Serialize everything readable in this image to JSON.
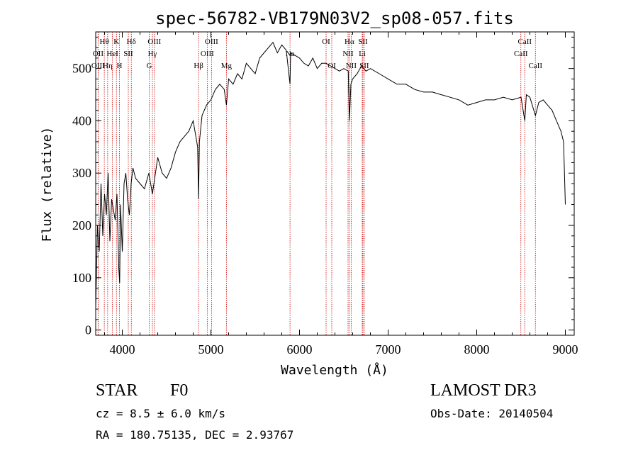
{
  "chart_data": {
    "type": "line",
    "title": "spec-56782-VB179N03V2_sp08-057.fits",
    "xlabel": "Wavelength (Å)",
    "ylabel": "Flux (relative)",
    "xlim": [
      3700,
      9100
    ],
    "ylim": [
      -10,
      570
    ],
    "xticks": [
      4000,
      5000,
      6000,
      7000,
      8000,
      9000
    ],
    "yticks": [
      0,
      100,
      200,
      300,
      400,
      500
    ],
    "xtick_labels": [
      "4000",
      "5000",
      "6000",
      "7000",
      "8000",
      "9000"
    ],
    "ytick_labels": [
      "0",
      "100",
      "200",
      "300",
      "400",
      "500"
    ],
    "grid": false,
    "series": [
      {
        "name": "flux",
        "x": [
          3700,
          3720,
          3740,
          3760,
          3780,
          3800,
          3820,
          3840,
          3860,
          3880,
          3900,
          3920,
          3940,
          3960,
          3970,
          3980,
          4000,
          4020,
          4040,
          4060,
          4080,
          4100,
          4120,
          4150,
          4200,
          4250,
          4300,
          4340,
          4400,
          4450,
          4500,
          4550,
          4600,
          4650,
          4700,
          4750,
          4800,
          4850,
          4861,
          4870,
          4900,
          4950,
          5000,
          5050,
          5100,
          5150,
          5175,
          5200,
          5250,
          5300,
          5350,
          5400,
          5450,
          5500,
          5550,
          5600,
          5650,
          5700,
          5750,
          5800,
          5850,
          5893,
          5900,
          5950,
          6000,
          6050,
          6100,
          6150,
          6200,
          6250,
          6300,
          6350,
          6400,
          6450,
          6500,
          6550,
          6563,
          6580,
          6600,
          6650,
          6700,
          6750,
          6800,
          6900,
          7000,
          7100,
          7200,
          7300,
          7400,
          7500,
          7600,
          7700,
          7800,
          7900,
          8000,
          8100,
          8200,
          8300,
          8400,
          8500,
          8542,
          8560,
          8600,
          8662,
          8700,
          8750,
          8800,
          8850,
          8900,
          8950,
          8980,
          9000
        ],
        "values": [
          40,
          200,
          150,
          280,
          180,
          260,
          220,
          300,
          170,
          250,
          230,
          210,
          260,
          120,
          90,
          240,
          150,
          280,
          300,
          250,
          220,
          280,
          310,
          290,
          280,
          270,
          300,
          260,
          330,
          300,
          290,
          310,
          340,
          360,
          370,
          380,
          400,
          350,
          250,
          360,
          410,
          430,
          440,
          460,
          470,
          460,
          430,
          480,
          470,
          490,
          480,
          510,
          500,
          490,
          520,
          530,
          540,
          550,
          530,
          545,
          535,
          470,
          530,
          525,
          520,
          510,
          505,
          520,
          500,
          510,
          510,
          505,
          500,
          495,
          500,
          495,
          400,
          470,
          480,
          490,
          505,
          495,
          500,
          490,
          480,
          470,
          470,
          460,
          455,
          455,
          450,
          445,
          440,
          430,
          435,
          440,
          440,
          445,
          440,
          445,
          400,
          450,
          445,
          410,
          435,
          440,
          430,
          420,
          400,
          380,
          360,
          240
        ]
      }
    ],
    "annotations": [
      {
        "label": "Hθ",
        "x": 3797,
        "row": 1
      },
      {
        "label": "OII",
        "x": 3727,
        "row": 2
      },
      {
        "label": "OIII",
        "x": 3727,
        "row": 3
      },
      {
        "label": "K",
        "x": 3934,
        "row": 1
      },
      {
        "label": "HeI",
        "x": 3889,
        "row": 2
      },
      {
        "label": "Hη",
        "x": 3835,
        "row": 3
      },
      {
        "label": "Hδ",
        "x": 4102,
        "row": 1
      },
      {
        "label": "SII",
        "x": 4068,
        "row": 2
      },
      {
        "label": "H",
        "x": 3968,
        "row": 3
      },
      {
        "label": "OIII",
        "x": 4363,
        "row": 1
      },
      {
        "label": "Hγ",
        "x": 4340,
        "row": 2
      },
      {
        "label": "G",
        "x": 4304,
        "row": 3
      },
      {
        "label": "Hβ",
        "x": 4861,
        "row": 3
      },
      {
        "label": "OIII",
        "x": 5007,
        "row": 1
      },
      {
        "label": "OIII",
        "x": 4959,
        "row": 2
      },
      {
        "label": "Mg",
        "x": 5175,
        "row": 3
      },
      {
        "label": "Na",
        "x": 5893,
        "row": 2
      },
      {
        "label": "OI",
        "x": 6300,
        "row": 1
      },
      {
        "label": "OI",
        "x": 6364,
        "row": 3
      },
      {
        "label": "Hα",
        "x": 6563,
        "row": 1
      },
      {
        "label": "NII",
        "x": 6548,
        "row": 2
      },
      {
        "label": "NII",
        "x": 6583,
        "row": 3
      },
      {
        "label": "SII",
        "x": 6716,
        "row": 1
      },
      {
        "label": "Li",
        "x": 6708,
        "row": 2
      },
      {
        "label": "SII",
        "x": 6731,
        "row": 3
      },
      {
        "label": "CaII",
        "x": 8542,
        "row": 1
      },
      {
        "label": "CaII",
        "x": 8498,
        "row": 2
      },
      {
        "label": "CaII",
        "x": 8662,
        "row": 3
      }
    ]
  },
  "info": {
    "obj_class": "STAR",
    "subclass": "F0",
    "survey": "LAMOST DR3",
    "cz": "cz = 8.5 ± 6.0 km/s",
    "obs_date": "Obs-Date: 20140504",
    "coords": "RA = 180.75135, DEC =    2.93767"
  },
  "colors": {
    "spectrum": "#000000",
    "line_markers": "#cc0000"
  }
}
